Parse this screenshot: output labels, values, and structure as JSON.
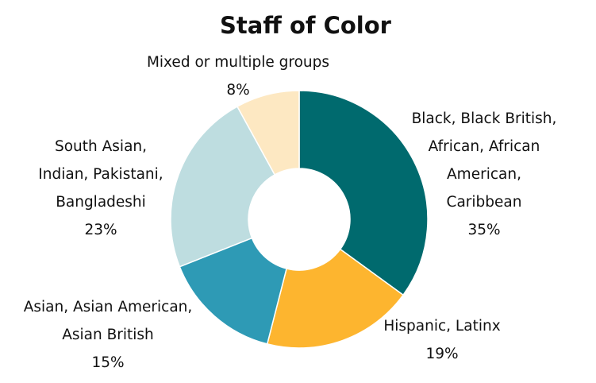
{
  "chart_data": {
    "type": "pie",
    "style": "donut",
    "title": "Staff of Color",
    "slices": [
      {
        "label_lines": [
          "Black, Black British,",
          "African, African",
          "American,",
          "Caribbean"
        ],
        "value": 35,
        "value_label": "35%",
        "color": "#006A6E"
      },
      {
        "label_lines": [
          "Hispanic, Latinx"
        ],
        "value": 19,
        "value_label": "19%",
        "color": "#FDB52F"
      },
      {
        "label_lines": [
          "Asian, Asian American,",
          "Asian British"
        ],
        "value": 15,
        "value_label": "15%",
        "color": "#2E9AB5"
      },
      {
        "label_lines": [
          "South Asian,",
          "Indian, Pakistani,",
          "Bangladeshi"
        ],
        "value": 23,
        "value_label": "23%",
        "color": "#BEDDE0"
      },
      {
        "label_lines": [
          "Mixed or multiple groups"
        ],
        "value": 8,
        "value_label": "8%",
        "color": "#FDE8C2"
      }
    ]
  }
}
